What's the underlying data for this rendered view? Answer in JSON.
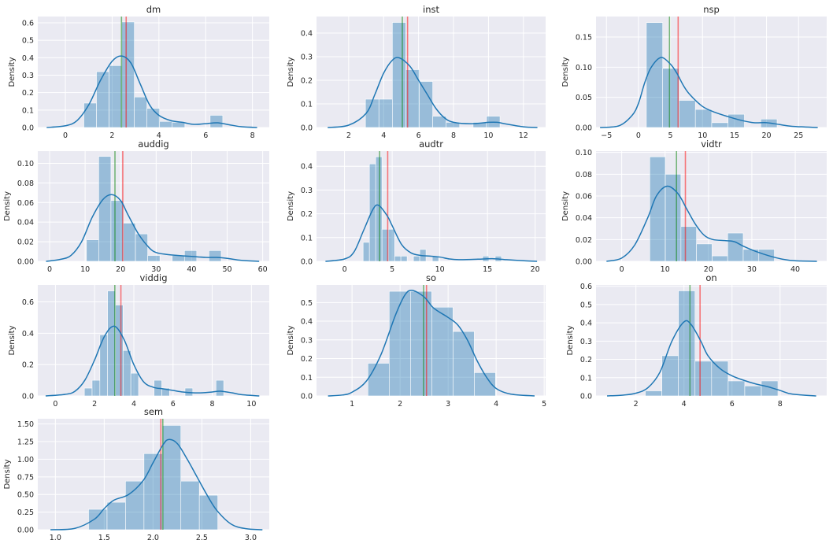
{
  "colors": {
    "background": "#eaeaf2",
    "grid": "#ffffff",
    "hist": "#1f77b4",
    "kde": "#1f77b4",
    "mean_line": "#f08080",
    "median_line": "#7fbf7f"
  },
  "chart_data": [
    {
      "type": "histogram+kde",
      "title": "dm",
      "ylabel": "Density",
      "xlim": [
        -1.18,
        8.72
      ],
      "ylim": [
        0,
        0.636
      ],
      "xticks": [
        "0",
        "2",
        "4",
        "6",
        "8"
      ],
      "yticks": [
        "0.0",
        "0.1",
        "0.2",
        "0.3",
        "0.4",
        "0.5",
        "0.6"
      ],
      "bin_start": 0.79,
      "bin_width": 0.54,
      "bin_heights": [
        0.14,
        0.32,
        0.355,
        0.605,
        0.175,
        0.11,
        0.035,
        0.03,
        0,
        0,
        0.07
      ],
      "mean": 2.6,
      "median": 2.4,
      "kde": [
        [
          -0.8,
          0
        ],
        [
          0,
          0.01
        ],
        [
          0.5,
          0.04
        ],
        [
          1,
          0.13
        ],
        [
          1.5,
          0.27
        ],
        [
          2,
          0.38
        ],
        [
          2.4,
          0.41
        ],
        [
          2.8,
          0.37
        ],
        [
          3.2,
          0.25
        ],
        [
          3.6,
          0.13
        ],
        [
          4,
          0.07
        ],
        [
          4.5,
          0.04
        ],
        [
          5,
          0.03
        ],
        [
          5.5,
          0.018
        ],
        [
          6,
          0.022
        ],
        [
          6.5,
          0.027
        ],
        [
          7,
          0.016
        ],
        [
          7.5,
          0.005
        ],
        [
          8.2,
          0
        ]
      ]
    },
    {
      "type": "histogram+kde",
      "title": "inst",
      "ylabel": "Density",
      "xlim": [
        0.16,
        13.27
      ],
      "ylim": [
        0,
        0.47
      ],
      "xticks": [
        "2",
        "4",
        "6",
        "8",
        "10",
        "12"
      ],
      "yticks": [
        "0.0",
        "0.1",
        "0.2",
        "0.3",
        "0.4"
      ],
      "bin_start": 2.96,
      "bin_width": 0.77,
      "bin_heights": [
        0.12,
        0.12,
        0.445,
        0.245,
        0.195,
        0.048,
        0.022,
        0,
        0.022,
        0.048
      ],
      "mean": 5.37,
      "median": 5.07,
      "kde": [
        [
          0.8,
          0
        ],
        [
          2,
          0.01
        ],
        [
          3,
          0.06
        ],
        [
          3.5,
          0.14
        ],
        [
          4,
          0.23
        ],
        [
          4.5,
          0.285
        ],
        [
          4.9,
          0.295
        ],
        [
          5.5,
          0.26
        ],
        [
          6,
          0.2
        ],
        [
          6.5,
          0.14
        ],
        [
          7,
          0.08
        ],
        [
          7.5,
          0.04
        ],
        [
          8,
          0.022
        ],
        [
          9,
          0.016
        ],
        [
          10,
          0.022
        ],
        [
          10.5,
          0.022
        ],
        [
          11,
          0.015
        ],
        [
          12,
          0.003
        ],
        [
          12.8,
          0
        ]
      ]
    },
    {
      "type": "histogram+kde",
      "title": "nsp",
      "ylabel": "Density",
      "xlim": [
        -6.63,
        29.4
      ],
      "ylim": [
        0,
        0.184
      ],
      "xticks": [
        "−5",
        "0",
        "5",
        "10",
        "15",
        "20",
        "25"
      ],
      "yticks": [
        "0.00",
        "0.05",
        "0.10",
        "0.15"
      ],
      "bin_start": 1.23,
      "bin_width": 2.553,
      "bin_heights": [
        0.174,
        0.098,
        0.045,
        0.03,
        0.008,
        0.022,
        0,
        0.014
      ],
      "mean": 6.2,
      "median": 4.85,
      "kde": [
        [
          -6,
          0
        ],
        [
          -3,
          0.003
        ],
        [
          -1,
          0.02
        ],
        [
          0,
          0.04
        ],
        [
          1,
          0.075
        ],
        [
          2,
          0.1
        ],
        [
          3.5,
          0.116
        ],
        [
          5,
          0.105
        ],
        [
          6,
          0.09
        ],
        [
          7,
          0.07
        ],
        [
          8,
          0.055
        ],
        [
          10,
          0.035
        ],
        [
          12,
          0.025
        ],
        [
          14,
          0.018
        ],
        [
          16,
          0.012
        ],
        [
          18,
          0.008
        ],
        [
          20,
          0.008
        ],
        [
          22,
          0.005
        ],
        [
          24,
          0.002
        ],
        [
          28,
          0
        ]
      ]
    },
    {
      "type": "histogram+kde",
      "title": "auddig",
      "ylabel": "Density",
      "xlim": [
        -3.33,
        61.85
      ],
      "ylim": [
        0,
        0.1124
      ],
      "xticks": [
        "0",
        "10",
        "20",
        "30",
        "40",
        "50",
        "60"
      ],
      "yticks": [
        "0.00",
        "0.02",
        "0.04",
        "0.06",
        "0.08",
        "0.10"
      ],
      "bin_start": 10.37,
      "bin_width": 3.45,
      "bin_heights": [
        0.022,
        0.107,
        0.062,
        0.039,
        0.028,
        0.006,
        0,
        0.006,
        0.011,
        0,
        0.011
      ],
      "mean": 20.6,
      "median": 18.4,
      "kde": [
        [
          -1,
          0
        ],
        [
          3,
          0.002
        ],
        [
          6,
          0.006
        ],
        [
          9,
          0.02
        ],
        [
          12,
          0.045
        ],
        [
          15,
          0.063
        ],
        [
          17.5,
          0.068
        ],
        [
          20,
          0.062
        ],
        [
          22,
          0.048
        ],
        [
          25,
          0.028
        ],
        [
          28,
          0.014
        ],
        [
          30,
          0.009
        ],
        [
          33,
          0.007
        ],
        [
          36,
          0.006
        ],
        [
          40,
          0.005
        ],
        [
          44,
          0.004
        ],
        [
          47,
          0.004
        ],
        [
          50,
          0.003
        ],
        [
          54,
          0.001
        ],
        [
          59,
          0
        ]
      ]
    },
    {
      "type": "histogram+kde",
      "title": "audtr",
      "ylabel": "Density",
      "xlim": [
        -2.94,
        21.1
      ],
      "ylim": [
        0,
        0.4637
      ],
      "xticks": [
        "0",
        "5",
        "10",
        "15",
        "20"
      ],
      "yticks": [
        "0.0",
        "0.1",
        "0.2",
        "0.3",
        "0.4"
      ],
      "bin_start": 1.95,
      "bin_width": 0.66,
      "bin_heights": [
        0.08,
        0.41,
        0.44,
        0.135,
        0.135,
        0.022,
        0.022,
        0,
        0.022,
        0.05,
        0,
        0.022,
        0,
        0,
        0,
        0,
        0,
        0,
        0,
        0.022,
        0,
        0.022
      ],
      "mean": 4.53,
      "median": 3.68,
      "kde": [
        [
          -2,
          0
        ],
        [
          0,
          0.01
        ],
        [
          1,
          0.04
        ],
        [
          2,
          0.13
        ],
        [
          3,
          0.22
        ],
        [
          3.6,
          0.235
        ],
        [
          4.5,
          0.19
        ],
        [
          5,
          0.15
        ],
        [
          6,
          0.07
        ],
        [
          7,
          0.035
        ],
        [
          8,
          0.025
        ],
        [
          9,
          0.022
        ],
        [
          10,
          0.018
        ],
        [
          11,
          0.01
        ],
        [
          12,
          0.007
        ],
        [
          14,
          0.009
        ],
        [
          15.5,
          0.011
        ],
        [
          17,
          0.007
        ],
        [
          19,
          0.002
        ],
        [
          20.2,
          0
        ]
      ]
    },
    {
      "type": "histogram+kde",
      "title": "vidtr",
      "ylabel": "Density",
      "xlim": [
        -5.92,
        47.25
      ],
      "ylim": [
        0,
        0.1012
      ],
      "xticks": [
        "0",
        "10",
        "20",
        "30",
        "40"
      ],
      "yticks": [
        "0.00",
        "0.02",
        "0.04",
        "0.06",
        "0.08",
        "0.10"
      ],
      "bin_start": 6.47,
      "bin_width": 3.59,
      "bin_heights": [
        0.096,
        0.08,
        0.032,
        0.016,
        0.005,
        0.026,
        0.011,
        0.011
      ],
      "mean": 14.68,
      "median": 12.63,
      "kde": [
        [
          -3.5,
          0
        ],
        [
          0,
          0.003
        ],
        [
          3,
          0.015
        ],
        [
          6,
          0.04
        ],
        [
          8,
          0.06
        ],
        [
          10.5,
          0.069
        ],
        [
          13,
          0.062
        ],
        [
          15,
          0.048
        ],
        [
          17,
          0.034
        ],
        [
          19,
          0.024
        ],
        [
          21,
          0.02
        ],
        [
          24,
          0.019
        ],
        [
          26,
          0.018
        ],
        [
          28,
          0.014
        ],
        [
          31,
          0.009
        ],
        [
          34,
          0.005
        ],
        [
          37,
          0.002
        ],
        [
          40,
          0.0005
        ],
        [
          45,
          0
        ]
      ]
    },
    {
      "type": "histogram+kde",
      "title": "viddig",
      "ylabel": "Density",
      "xlim": [
        -0.9,
        10.91
      ],
      "ylim": [
        0,
        0.708
      ],
      "xticks": [
        "0",
        "2",
        "4",
        "6",
        "8",
        "10"
      ],
      "yticks": [
        "0.0",
        "0.2",
        "0.4",
        "0.6"
      ],
      "bin_start": 1.476,
      "bin_width": 0.395,
      "bin_heights": [
        0.05,
        0.1,
        0.39,
        0.67,
        0.58,
        0.29,
        0.145,
        0,
        0,
        0.1,
        0.05,
        0,
        0,
        0.05,
        0,
        0,
        0,
        0.1
      ],
      "mean": 3.34,
      "median": 3.03,
      "kde": [
        [
          -0.5,
          0
        ],
        [
          0.5,
          0.01
        ],
        [
          1,
          0.03
        ],
        [
          1.5,
          0.1
        ],
        [
          2,
          0.23
        ],
        [
          2.5,
          0.38
        ],
        [
          3,
          0.445
        ],
        [
          3.5,
          0.36
        ],
        [
          4,
          0.2
        ],
        [
          4.5,
          0.09
        ],
        [
          5,
          0.055
        ],
        [
          5.5,
          0.045
        ],
        [
          6,
          0.035
        ],
        [
          6.5,
          0.025
        ],
        [
          7,
          0.02
        ],
        [
          7.5,
          0.02
        ],
        [
          8,
          0.025
        ],
        [
          8.4,
          0.03
        ],
        [
          9,
          0.02
        ],
        [
          9.5,
          0.008
        ],
        [
          10.4,
          0
        ]
      ]
    },
    {
      "type": "histogram+kde",
      "title": "so",
      "ylabel": "Density",
      "xlim": [
        0.26,
        5.03
      ],
      "ylim": [
        0,
        0.594
      ],
      "xticks": [
        "1",
        "2",
        "3",
        "4",
        "5"
      ],
      "yticks": [
        "0.0",
        "0.1",
        "0.2",
        "0.3",
        "0.4",
        "0.5"
      ],
      "bin_start": 1.33,
      "bin_width": 0.443,
      "bin_heights": [
        0.175,
        0.56,
        0.56,
        0.475,
        0.345,
        0.125
      ],
      "mean": 2.55,
      "median": 2.49,
      "kde": [
        [
          0.5,
          0
        ],
        [
          0.8,
          0.005
        ],
        [
          1,
          0.02
        ],
        [
          1.3,
          0.08
        ],
        [
          1.6,
          0.22
        ],
        [
          1.9,
          0.43
        ],
        [
          2.1,
          0.54
        ],
        [
          2.25,
          0.565
        ],
        [
          2.5,
          0.53
        ],
        [
          2.7,
          0.47
        ],
        [
          3,
          0.42
        ],
        [
          3.2,
          0.38
        ],
        [
          3.4,
          0.3
        ],
        [
          3.6,
          0.19
        ],
        [
          3.8,
          0.1
        ],
        [
          4,
          0.04
        ],
        [
          4.3,
          0.01
        ],
        [
          4.8,
          0
        ]
      ]
    },
    {
      "type": "histogram+kde",
      "title": "on",
      "ylabel": "Density",
      "xlim": [
        0.34,
        9.94
      ],
      "ylim": [
        0,
        0.607
      ],
      "xticks": [
        "2",
        "4",
        "6",
        "8"
      ],
      "yticks": [
        "0.0",
        "0.1",
        "0.2",
        "0.3",
        "0.4",
        "0.5",
        "0.6"
      ],
      "bin_start": 2.39,
      "bin_width": 0.69,
      "bin_heights": [
        0.028,
        0.22,
        0.575,
        0.19,
        0.19,
        0.082,
        0.055,
        0.082
      ],
      "mean": 4.67,
      "median": 4.25,
      "kde": [
        [
          0.8,
          0
        ],
        [
          1.5,
          0.005
        ],
        [
          2,
          0.015
        ],
        [
          2.5,
          0.045
        ],
        [
          3,
          0.13
        ],
        [
          3.5,
          0.3
        ],
        [
          4,
          0.405
        ],
        [
          4.3,
          0.39
        ],
        [
          4.7,
          0.3
        ],
        [
          5,
          0.22
        ],
        [
          5.5,
          0.15
        ],
        [
          6,
          0.11
        ],
        [
          6.5,
          0.085
        ],
        [
          7,
          0.065
        ],
        [
          7.5,
          0.05
        ],
        [
          8,
          0.03
        ],
        [
          8.5,
          0.01
        ],
        [
          9.5,
          0
        ]
      ]
    },
    {
      "type": "histogram+kde",
      "title": "sem",
      "ylabel": "Density",
      "xlim": [
        0.82,
        3.19
      ],
      "ylim": [
        0,
        1.574
      ],
      "xticks": [
        "1.0",
        "1.5",
        "2.0",
        "2.5",
        "3.0"
      ],
      "yticks": [
        "0.00",
        "0.25",
        "0.50",
        "0.75",
        "1.00",
        "1.25",
        "1.50"
      ],
      "bin_start": 1.34,
      "bin_width": 0.189,
      "bin_heights": [
        0.29,
        0.39,
        0.69,
        1.08,
        1.48,
        0.69,
        0.49
      ],
      "mean": 2.08,
      "median": 2.1,
      "kde": [
        [
          0.95,
          0
        ],
        [
          1.2,
          0.02
        ],
        [
          1.4,
          0.15
        ],
        [
          1.5,
          0.3
        ],
        [
          1.6,
          0.42
        ],
        [
          1.75,
          0.5
        ],
        [
          1.9,
          0.7
        ],
        [
          2.0,
          0.95
        ],
        [
          2.1,
          1.2
        ],
        [
          2.16,
          1.28
        ],
        [
          2.25,
          1.22
        ],
        [
          2.35,
          1.0
        ],
        [
          2.45,
          0.75
        ],
        [
          2.55,
          0.5
        ],
        [
          2.65,
          0.28
        ],
        [
          2.8,
          0.08
        ],
        [
          2.95,
          0.015
        ],
        [
          3.12,
          0
        ]
      ]
    }
  ]
}
